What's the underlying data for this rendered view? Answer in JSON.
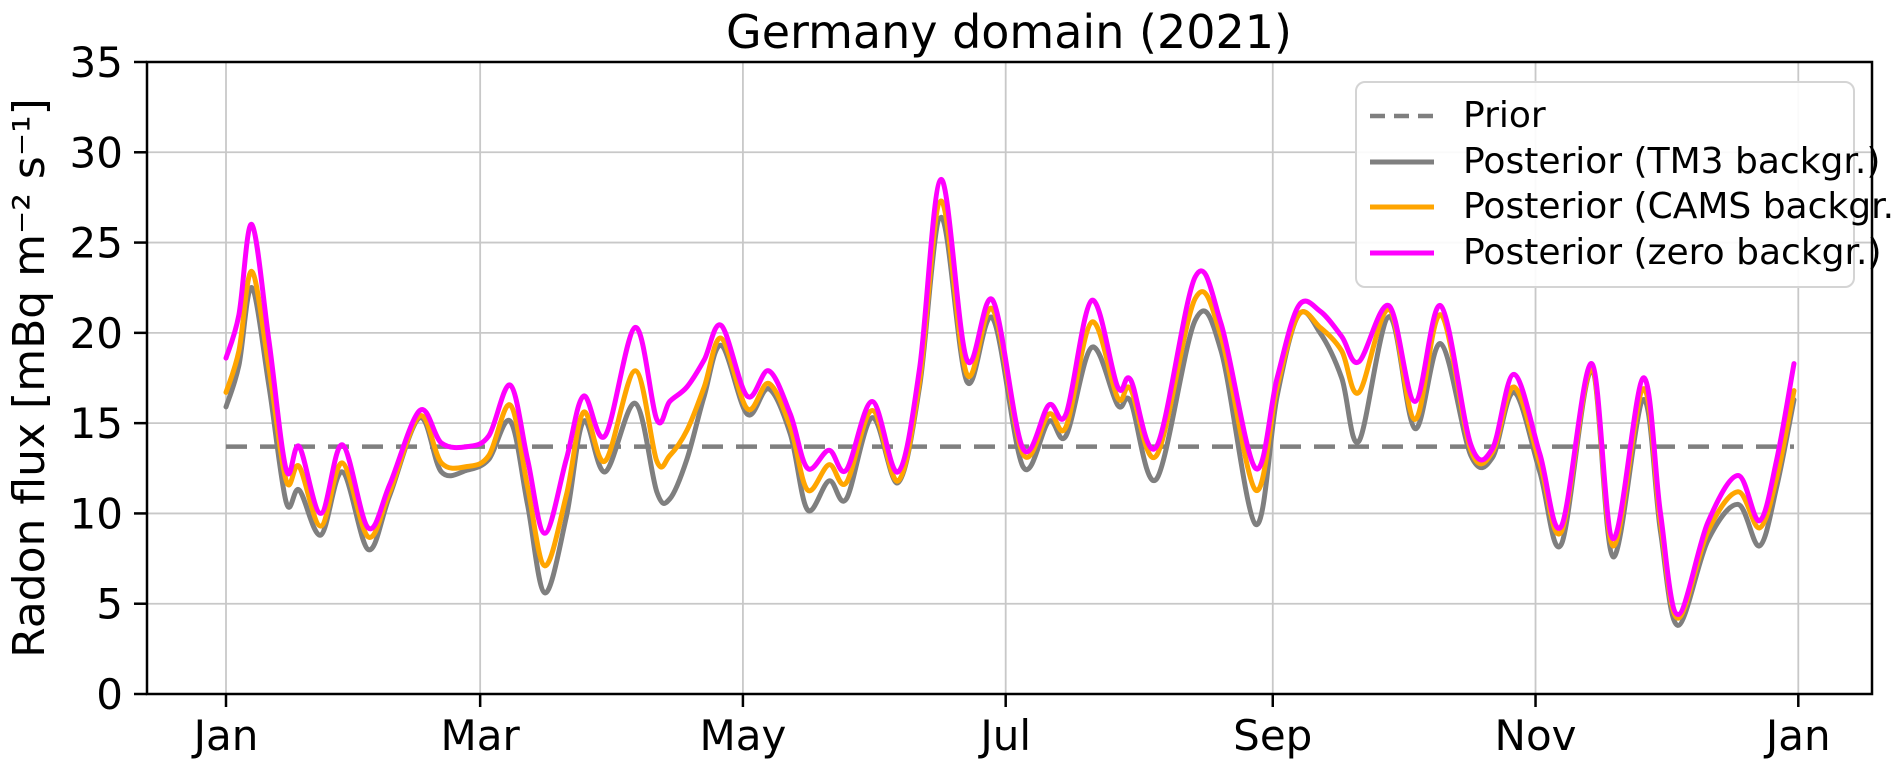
{
  "title": "Germany domain (2021)",
  "axes": {
    "ylabel": "Radon flux [mBq m⁻² s⁻¹]",
    "yticks": [
      0,
      5,
      10,
      15,
      20,
      25,
      30,
      35
    ],
    "xticks": [
      {
        "label": "Jan",
        "day": 0
      },
      {
        "label": "Mar",
        "day": 59
      },
      {
        "label": "May",
        "day": 120
      },
      {
        "label": "Jul",
        "day": 181
      },
      {
        "label": "Sep",
        "day": 243
      },
      {
        "label": "Nov",
        "day": 304
      },
      {
        "label": "Jan",
        "day": 365
      }
    ]
  },
  "legend": [
    {
      "key": "prior",
      "label": "Prior",
      "color": "#7f7f7f",
      "dashed": true
    },
    {
      "key": "posterior-tm3",
      "label": "Posterior (TM3 backgr.)",
      "color": "#7f7f7f",
      "dashed": false
    },
    {
      "key": "posterior-cams",
      "label": "Posterior (CAMS backgr.)",
      "color": "#ffa500",
      "dashed": false
    },
    {
      "key": "posterior-zero",
      "label": "Posterior (zero backgr.)",
      "color": "#ff00ff",
      "dashed": false
    }
  ],
  "chart_data": {
    "type": "line",
    "title": "Germany domain (2021)",
    "xlabel": "",
    "ylabel": "Radon flux [mBq m⁻² s⁻¹]",
    "ylim": [
      0,
      35
    ],
    "xlim_days": [
      -19,
      382
    ],
    "grid": true,
    "legend_position": "upper right",
    "x_unit": "day of year 2021",
    "x": [
      0,
      3,
      6,
      10,
      14,
      17,
      22,
      27,
      33,
      38,
      45,
      50,
      56,
      61,
      66,
      70,
      74,
      79,
      83,
      88,
      95,
      100,
      103,
      107,
      111,
      115,
      121,
      126,
      131,
      135,
      140,
      144,
      150,
      156,
      161,
      166,
      172,
      178,
      185,
      191,
      195,
      201,
      207,
      210,
      216,
      225,
      231,
      239,
      244,
      249,
      254,
      259,
      263,
      270,
      276,
      282,
      289,
      294,
      299,
      305,
      310,
      317,
      322,
      329,
      333,
      337,
      344,
      351,
      356,
      360,
      364
    ],
    "series": [
      {
        "key": "prior",
        "name": "Prior",
        "color": "#7f7f7f",
        "style": "dashed",
        "constant_value": 13.7
      },
      {
        "key": "posterior-tm3",
        "name": "Posterior (TM3 backgr.)",
        "color": "#7f7f7f",
        "style": "solid",
        "values": [
          15.9,
          18.2,
          22.5,
          17.0,
          10.6,
          11.3,
          8.8,
          12.3,
          8.0,
          11.0,
          15.3,
          12.3,
          12.4,
          13.0,
          15.1,
          10.5,
          5.6,
          9.8,
          15.1,
          12.3,
          16.1,
          11.2,
          10.8,
          13.0,
          16.5,
          19.3,
          15.5,
          16.9,
          14.4,
          10.2,
          11.8,
          10.8,
          15.3,
          11.7,
          17.0,
          26.4,
          17.3,
          20.8,
          12.6,
          15.1,
          14.3,
          19.2,
          16.0,
          16.2,
          11.9,
          20.7,
          19.0,
          9.4,
          16.5,
          21.0,
          20.0,
          17.5,
          14.0,
          20.9,
          14.7,
          19.4,
          13.2,
          13.1,
          16.7,
          12.3,
          8.3,
          17.9,
          7.6,
          16.3,
          9.0,
          3.8,
          8.5,
          10.5,
          8.2,
          11.5,
          16.3
        ]
      },
      {
        "key": "posterior-cams",
        "name": "Posterior (CAMS backgr.)",
        "color": "#ffa500",
        "style": "solid",
        "values": [
          16.7,
          19.0,
          23.4,
          18.0,
          11.8,
          12.6,
          9.3,
          12.8,
          8.7,
          11.2,
          15.4,
          12.8,
          12.6,
          13.2,
          16.0,
          11.5,
          7.1,
          11.0,
          15.6,
          12.9,
          17.9,
          12.9,
          13.2,
          14.6,
          17.0,
          19.7,
          15.8,
          17.2,
          14.8,
          11.3,
          12.7,
          11.7,
          15.7,
          11.8,
          17.3,
          27.3,
          17.7,
          21.3,
          13.3,
          15.5,
          14.8,
          20.6,
          16.4,
          16.9,
          13.2,
          21.9,
          19.8,
          11.3,
          17.0,
          21.0,
          20.3,
          19.0,
          16.7,
          21.3,
          15.2,
          21.0,
          13.5,
          13.4,
          17.0,
          12.8,
          9.0,
          18.0,
          8.2,
          16.9,
          9.5,
          4.2,
          9.0,
          11.2,
          9.2,
          12.0,
          16.8
        ]
      },
      {
        "key": "posterior-zero",
        "name": "Posterior (zero backgr.)",
        "color": "#ff00ff",
        "style": "solid",
        "values": [
          18.6,
          21.0,
          26.0,
          19.5,
          12.4,
          13.7,
          10.0,
          13.8,
          9.2,
          11.6,
          15.7,
          13.9,
          13.7,
          14.3,
          17.1,
          13.0,
          8.9,
          13.0,
          16.5,
          14.3,
          20.3,
          15.2,
          16.2,
          17.0,
          18.5,
          20.4,
          16.5,
          17.9,
          15.5,
          12.5,
          13.5,
          12.4,
          16.2,
          12.3,
          18.0,
          28.5,
          18.5,
          21.8,
          13.6,
          16.0,
          15.5,
          21.8,
          17.0,
          17.4,
          13.7,
          23.1,
          20.5,
          12.5,
          17.5,
          21.5,
          21.2,
          19.8,
          18.4,
          21.5,
          16.2,
          21.5,
          13.8,
          13.6,
          17.7,
          13.3,
          9.3,
          18.3,
          8.6,
          17.5,
          10.0,
          4.4,
          9.5,
          12.1,
          9.6,
          13.0,
          18.3
        ]
      }
    ]
  }
}
